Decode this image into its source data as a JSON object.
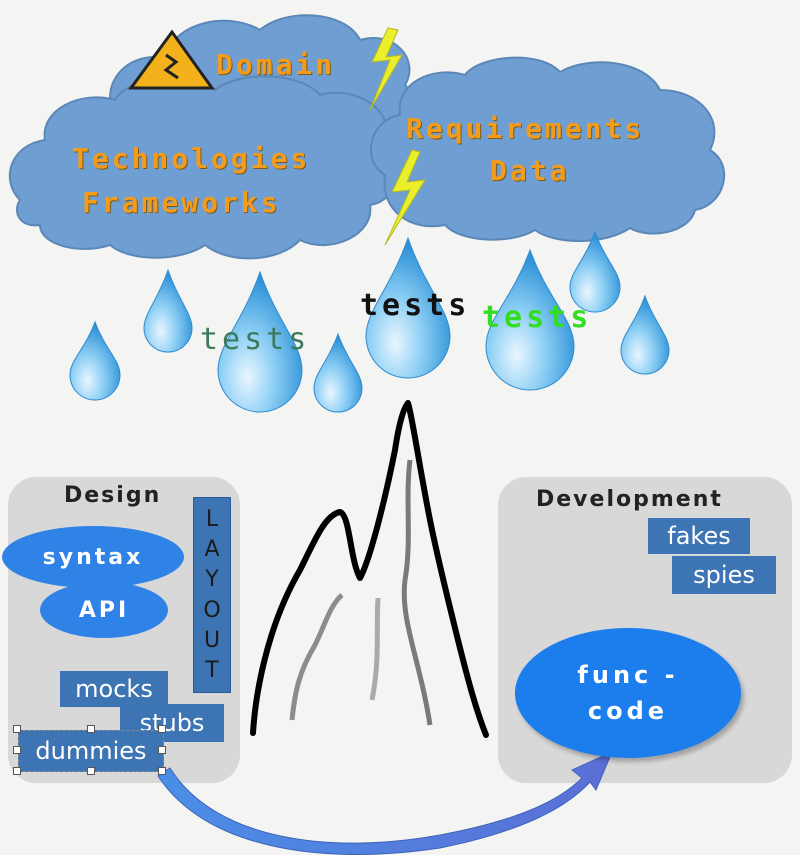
{
  "clouds": {
    "domain_label": "Domain",
    "tech_line1": "Technologies",
    "tech_line2": "Frameworks",
    "req_line1": "Requirements",
    "req_line2": "Data"
  },
  "rain": {
    "tests_left": "tests",
    "tests_middle": "tests",
    "tests_right": "tests"
  },
  "design": {
    "title": "Design",
    "syntax": "syntax",
    "api": "API",
    "layout_letters": [
      "L",
      "A",
      "Y",
      "O",
      "U",
      "T"
    ],
    "mocks": "mocks",
    "stubs": "stubs",
    "dummies": "dummies"
  },
  "development": {
    "title": "Development",
    "fakes": "fakes",
    "spies": "spies",
    "func_line1": "func -",
    "func_line2": "code"
  },
  "colors": {
    "cloud": "#6f9fd2",
    "cloud_text": "#f39c1c",
    "drop": "#4aa8e6",
    "tests_left": "#3d7a5c",
    "tests_middle": "#111111",
    "tests_right": "#33dd22",
    "tag": "#3d74b4",
    "ellipse": "#2f82e6",
    "panel": "#d8d8d8"
  }
}
